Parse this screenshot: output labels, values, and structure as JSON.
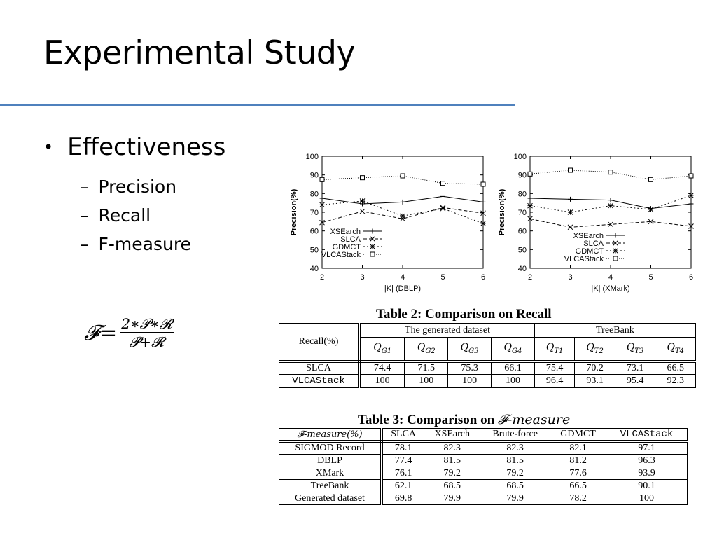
{
  "slide": {
    "title": "Experimental Study",
    "bullet": "Effectiveness",
    "sub_bullets": [
      "Precision",
      "Recall",
      "F-measure"
    ],
    "formula": {
      "lhs": "𝓕=",
      "numerator": "2∗𝓟∗𝓡",
      "denominator": "𝓟+𝓡"
    }
  },
  "chart_data": [
    {
      "type": "line",
      "xlabel": "|K| (DBLP)",
      "ylabel": "Precision(%)",
      "x": [
        2,
        3,
        4,
        5,
        6
      ],
      "xlim": [
        2,
        6
      ],
      "ylim": [
        40,
        100
      ],
      "yticks": [
        40,
        50,
        60,
        70,
        80,
        90,
        100
      ],
      "legend_position": "center-left",
      "series": [
        {
          "name": "XSEarch",
          "values": [
            77.5,
            74.5,
            75.5,
            78.5,
            75.5
          ]
        },
        {
          "name": "SLCA",
          "values": [
            64.5,
            70.5,
            66.5,
            72.5,
            69.5
          ]
        },
        {
          "name": "GDMCT",
          "values": [
            74,
            76,
            68,
            72,
            64
          ]
        },
        {
          "name": "VLCAStack",
          "values": [
            87.5,
            88.5,
            89.5,
            85.5,
            85
          ]
        }
      ]
    },
    {
      "type": "line",
      "xlabel": "|K| (XMark)",
      "ylabel": "Precision(%)",
      "x": [
        2,
        3,
        4,
        5,
        6
      ],
      "xlim": [
        2,
        6
      ],
      "ylim": [
        40,
        100
      ],
      "yticks": [
        40,
        50,
        60,
        70,
        80,
        90,
        100
      ],
      "legend_position": "center-right",
      "series": [
        {
          "name": "XSEarch",
          "values": [
            77.5,
            77,
            76.5,
            72,
            74.5
          ]
        },
        {
          "name": "SLCA",
          "values": [
            66.5,
            62,
            63.5,
            65,
            62.5
          ]
        },
        {
          "name": "GDMCT",
          "values": [
            73.5,
            70,
            73.5,
            71.5,
            79
          ]
        },
        {
          "name": "VLCAStack",
          "values": [
            90.5,
            92.5,
            91.5,
            87.5,
            89.5
          ]
        }
      ]
    }
  ],
  "table2": {
    "caption": "Table 2: Comparison on Recall",
    "corner": "Recall(%)",
    "group1": "The generated dataset",
    "group2": "TreeBank",
    "q_main": "Q",
    "q_subs": [
      "G1",
      "G2",
      "G3",
      "G4",
      "T1",
      "T2",
      "T3",
      "T4"
    ],
    "rows": [
      {
        "name": "SLCA",
        "values": [
          "74.4",
          "71.5",
          "75.3",
          "66.1",
          "75.4",
          "70.2",
          "73.1",
          "66.5"
        ]
      },
      {
        "name": "VLCAStack",
        "values": [
          "100",
          "100",
          "100",
          "100",
          "96.4",
          "93.1",
          "95.4",
          "92.3"
        ]
      }
    ]
  },
  "table3": {
    "caption_prefix": "Table 3: Comparison on ",
    "caption_f": "𝓕",
    "caption_suffix": "-measure",
    "headers": [
      "𝓕-measure(%)",
      "SLCA",
      "XSEarch",
      "Brute-force",
      "GDMCT",
      "VLCAStack"
    ],
    "rows": [
      {
        "name": "SIGMOD Record",
        "values": [
          "78.1",
          "82.3",
          "82.3",
          "82.1",
          "97.1"
        ]
      },
      {
        "name": "DBLP",
        "values": [
          "77.4",
          "81.5",
          "81.5",
          "81.2",
          "96.3"
        ]
      },
      {
        "name": "XMark",
        "values": [
          "76.1",
          "79.2",
          "79.2",
          "77.6",
          "93.9"
        ]
      },
      {
        "name": "TreeBank",
        "values": [
          "62.1",
          "68.5",
          "68.5",
          "66.5",
          "90.1"
        ]
      },
      {
        "name": "Generated dataset",
        "values": [
          "69.8",
          "79.9",
          "79.9",
          "78.2",
          "100"
        ]
      }
    ]
  }
}
